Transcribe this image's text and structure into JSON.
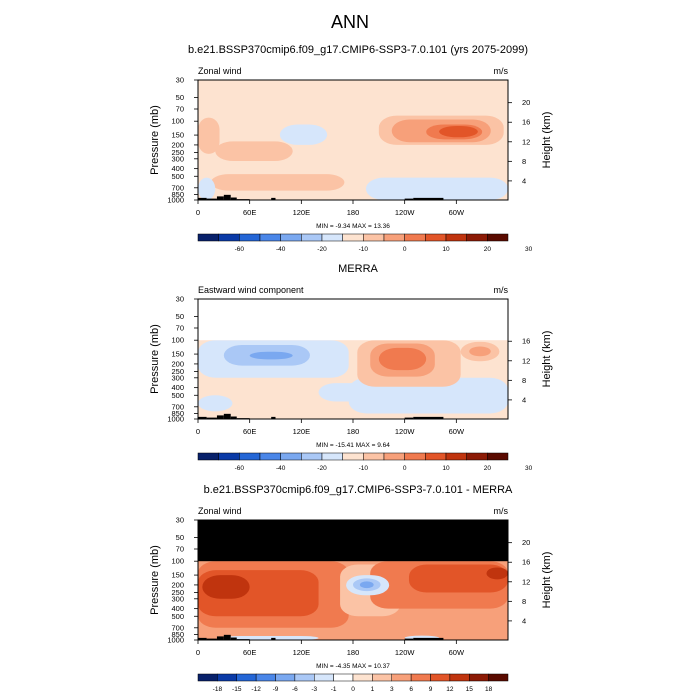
{
  "figure": {
    "title": "ANN"
  },
  "colors": {
    "scale_full": [
      "#08216b",
      "#0a3aa7",
      "#2466d6",
      "#4a86e8",
      "#7aa8f0",
      "#aac8f6",
      "#d6e6fb",
      "#fde3d0",
      "#fbc3a5",
      "#f7a07a",
      "#f07a4f",
      "#e25528",
      "#c0340e",
      "#8c1a05",
      "#5a0a00"
    ],
    "scale_diff": [
      "#08216b",
      "#0a3aa7",
      "#2466d6",
      "#4a86e8",
      "#7aa8f0",
      "#aac8f6",
      "#d6e6fb",
      "#ffffff",
      "#fde3d0",
      "#fbc3a5",
      "#f7a07a",
      "#f07a4f",
      "#e25528",
      "#c0340e",
      "#8c1a05",
      "#5a0a00"
    ],
    "missing": "#000000",
    "topo": "#000000"
  },
  "chart_data": [
    {
      "type": "heatmap",
      "title": "b.e21.BSSP370cmip6.f09_g17.CMIP6-SSP3-7.0.101 (yrs 2075-2099)",
      "left_label": "Zonal wind",
      "units": "m/s",
      "ylabel": "Pressure (mb)",
      "y2label": "Height (km)",
      "x_ticks": [
        "0",
        "60E",
        "120E",
        "180",
        "120W",
        "60W"
      ],
      "x_tick_values": [
        0,
        60,
        120,
        180,
        240,
        300
      ],
      "x_range": [
        0,
        360
      ],
      "y_range_mb": [
        1000,
        30
      ],
      "y_scale": "log",
      "y_ticks": [
        "30",
        "50",
        "70",
        "100",
        "150",
        "200",
        "250",
        "300",
        "400",
        "500",
        "700",
        "850",
        "1000"
      ],
      "y_tick_values": [
        30,
        50,
        70,
        100,
        150,
        200,
        250,
        300,
        400,
        500,
        700,
        850,
        1000
      ],
      "y2_ticks": [
        "4",
        "8",
        "12",
        "16",
        "20"
      ],
      "y2_tick_values_km": [
        4,
        8,
        12,
        16,
        20
      ],
      "stats": "MIN = -9.34  MAX = 13.36",
      "min": -9.34,
      "max": 13.36,
      "colorbar_labels": [
        "-60",
        "-40",
        "-20",
        "-10",
        "0",
        "10",
        "20",
        "30"
      ],
      "colorbar_label_boundaries": [
        2,
        4,
        6,
        8,
        10,
        12,
        14,
        16
      ],
      "colorbar_bins": 15,
      "data_top_mb": 30,
      "base_bin": 7,
      "regions": [
        {
          "lon": [
            95,
            150
          ],
          "p": [
            110,
            200
          ],
          "bin": 6
        },
        {
          "lon": [
            210,
            355
          ],
          "p": [
            85,
            200
          ],
          "bin": 8
        },
        {
          "lon": [
            225,
            340
          ],
          "p": [
            95,
            185
          ],
          "bin": 9
        },
        {
          "lon": [
            265,
            330
          ],
          "p": [
            110,
            170
          ],
          "bin": 10
        },
        {
          "lon": [
            280,
            325
          ],
          "p": [
            115,
            160
          ],
          "bin": 11
        },
        {
          "lon": [
            0,
            25
          ],
          "p": [
            90,
            260
          ],
          "bin": 8
        },
        {
          "lon": [
            20,
            110
          ],
          "p": [
            180,
            320
          ],
          "bin": 8
        },
        {
          "lon": [
            15,
            170
          ],
          "p": [
            470,
            760
          ],
          "bin": 8
        },
        {
          "lon": [
            195,
            360
          ],
          "p": [
            520,
            1000
          ],
          "bin": 6
        },
        {
          "lon": [
            0,
            20
          ],
          "p": [
            520,
            1000
          ],
          "bin": 6
        }
      ]
    },
    {
      "type": "heatmap",
      "title": "MERRA",
      "left_label": "Eastward wind component",
      "units": "m/s",
      "ylabel": "Pressure (mb)",
      "y2label": "Height (km)",
      "x_ticks": [
        "0",
        "60E",
        "120E",
        "180",
        "120W",
        "60W"
      ],
      "x_tick_values": [
        0,
        60,
        120,
        180,
        240,
        300
      ],
      "x_range": [
        0,
        360
      ],
      "y_range_mb": [
        1000,
        30
      ],
      "y_scale": "log",
      "y_ticks": [
        "30",
        "50",
        "70",
        "100",
        "150",
        "200",
        "250",
        "300",
        "400",
        "500",
        "700",
        "850",
        "1000"
      ],
      "y_tick_values": [
        30,
        50,
        70,
        100,
        150,
        200,
        250,
        300,
        400,
        500,
        700,
        850,
        1000
      ],
      "y2_ticks": [
        "4",
        "8",
        "12",
        "16"
      ],
      "y2_tick_values_km": [
        4,
        8,
        12,
        16
      ],
      "stats": "MIN = -15.41  MAX =  9.64",
      "min": -15.41,
      "max": 9.64,
      "colorbar_labels": [
        "-60",
        "-40",
        "-20",
        "-10",
        "0",
        "10",
        "20",
        "30"
      ],
      "colorbar_label_boundaries": [
        2,
        4,
        6,
        8,
        10,
        12,
        14,
        16
      ],
      "colorbar_bins": 15,
      "data_top_mb": 100,
      "top_fill": "#ffffff",
      "base_bin": 7,
      "regions": [
        {
          "lon": [
            0,
            175
          ],
          "p": [
            100,
            300
          ],
          "bin": 6
        },
        {
          "lon": [
            30,
            130
          ],
          "p": [
            115,
            210
          ],
          "bin": 5
        },
        {
          "lon": [
            60,
            110
          ],
          "p": [
            140,
            175
          ],
          "bin": 4
        },
        {
          "lon": [
            175,
            360
          ],
          "p": [
            300,
            850
          ],
          "bin": 6
        },
        {
          "lon": [
            140,
            230
          ],
          "p": [
            350,
            600
          ],
          "bin": 6
        },
        {
          "lon": [
            0,
            40
          ],
          "p": [
            500,
            800
          ],
          "bin": 6
        },
        {
          "lon": [
            185,
            305
          ],
          "p": [
            100,
            390
          ],
          "bin": 8
        },
        {
          "lon": [
            200,
            275
          ],
          "p": [
            110,
            290
          ],
          "bin": 9
        },
        {
          "lon": [
            210,
            265
          ],
          "p": [
            125,
            240
          ],
          "bin": 10
        },
        {
          "lon": [
            305,
            350
          ],
          "p": [
            105,
            185
          ],
          "bin": 8
        },
        {
          "lon": [
            315,
            340
          ],
          "p": [
            120,
            160
          ],
          "bin": 9
        }
      ]
    },
    {
      "type": "heatmap",
      "title": "b.e21.BSSP370cmip6.f09_g17.CMIP6-SSP3-7.0.101 - MERRA",
      "left_label": "Zonal wind",
      "units": "m/s",
      "ylabel": "Pressure (mb)",
      "y2label": "Height (km)",
      "x_ticks": [
        "0",
        "60E",
        "120E",
        "180",
        "120W",
        "60W"
      ],
      "x_tick_values": [
        0,
        60,
        120,
        180,
        240,
        300
      ],
      "x_range": [
        0,
        360
      ],
      "y_range_mb": [
        1000,
        30
      ],
      "y_scale": "log",
      "y_ticks": [
        "30",
        "50",
        "70",
        "100",
        "150",
        "200",
        "250",
        "300",
        "400",
        "500",
        "700",
        "850",
        "1000"
      ],
      "y_tick_values": [
        30,
        50,
        70,
        100,
        150,
        200,
        250,
        300,
        400,
        500,
        700,
        850,
        1000
      ],
      "y2_ticks": [
        "4",
        "8",
        "12",
        "16",
        "20"
      ],
      "y2_tick_values_km": [
        4,
        8,
        12,
        16,
        20
      ],
      "stats": "MIN = -4.35  MAX = 10.37",
      "min": -4.35,
      "max": 10.37,
      "colorbar_labels": [
        "-18",
        "-15",
        "-12",
        "-9",
        "-6",
        "-3",
        "-1",
        "0",
        "1",
        "3",
        "6",
        "9",
        "12",
        "15",
        "18"
      ],
      "colorbar_label_boundaries": [
        1,
        2,
        3,
        4,
        5,
        6,
        7,
        8,
        9,
        10,
        11,
        12,
        13,
        14,
        15
      ],
      "colorbar_bins": 16,
      "data_top_mb": 100,
      "top_fill": "#000000",
      "base_bin": 10,
      "regions": [
        {
          "lon": [
            0,
            175
          ],
          "p": [
            100,
            700
          ],
          "bin": 11
        },
        {
          "lon": [
            0,
            140
          ],
          "p": [
            130,
            500
          ],
          "bin": 12
        },
        {
          "lon": [
            5,
            60
          ],
          "p": [
            150,
            300
          ],
          "bin": 13
        },
        {
          "lon": [
            165,
            235
          ],
          "p": [
            110,
            500
          ],
          "bin": 9
        },
        {
          "lon": [
            200,
            360
          ],
          "p": [
            100,
            400
          ],
          "bin": 11
        },
        {
          "lon": [
            245,
            360
          ],
          "p": [
            110,
            250
          ],
          "bin": 12
        },
        {
          "lon": [
            335,
            360
          ],
          "p": [
            120,
            170
          ],
          "bin": 13
        },
        {
          "lon": [
            172,
            222
          ],
          "p": [
            150,
            270
          ],
          "bin": 6
        },
        {
          "lon": [
            180,
            212
          ],
          "p": [
            165,
            240
          ],
          "bin": 5
        },
        {
          "lon": [
            188,
            204
          ],
          "p": [
            180,
            220
          ],
          "bin": 4
        },
        {
          "lon": [
            30,
            140
          ],
          "p": [
            890,
            1000
          ],
          "bin": 6
        },
        {
          "lon": [
            240,
            280
          ],
          "p": [
            880,
            1000
          ],
          "bin": 6
        }
      ]
    }
  ]
}
